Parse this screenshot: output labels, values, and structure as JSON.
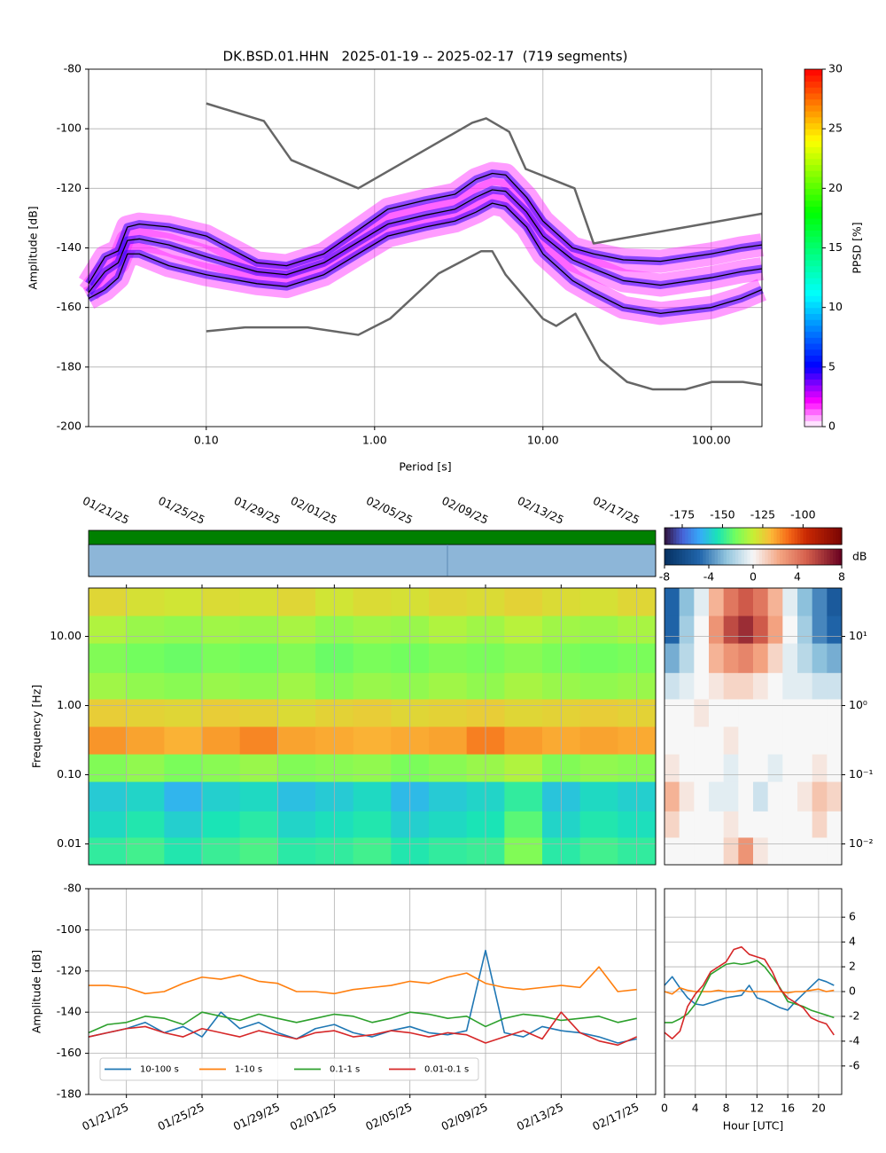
{
  "chart_data": [
    {
      "type": "line",
      "title": "DK.BSD.01.HHN   2025-01-19 -- 2025-02-17  (719 segments)",
      "xlabel": "Period [s]",
      "ylabel": "Amplitude [dB]",
      "xlog": true,
      "xlim": [
        0.02,
        200
      ],
      "ylim": [
        -200,
        -80
      ],
      "xticks": [
        {
          "value": 0.1,
          "label": "0.10"
        },
        {
          "value": 1,
          "label": "1.00"
        },
        {
          "value": 10,
          "label": "10.00"
        },
        {
          "value": 100,
          "label": "100.00"
        }
      ],
      "yticks": [
        -200,
        -180,
        -160,
        -140,
        -120,
        -100,
        -80
      ],
      "grid": true,
      "colorbar": {
        "label": "PPSD [%]",
        "clim": [
          0,
          30
        ],
        "ticks": [
          0,
          5,
          10,
          15,
          20,
          25,
          30
        ],
        "colormap": "pqlx"
      },
      "series": [
        {
          "color": "#000000",
          "x": [
            0.02,
            0.025,
            0.03,
            0.034,
            0.04,
            0.06,
            0.1,
            0.2,
            0.3,
            0.5,
            0.8,
            1.2,
            2,
            3,
            4,
            5,
            6,
            8,
            10,
            15,
            20,
            30,
            50,
            100,
            150,
            200
          ],
          "values": [
            -152,
            -143,
            -141,
            -133,
            -132,
            -133,
            -136,
            -145,
            -146,
            -142,
            -134,
            -127,
            -124,
            -122,
            -117,
            -115,
            -115.5,
            -123,
            -131,
            -140,
            -142,
            -144,
            -144.5,
            -142,
            -140,
            -139
          ]
        },
        {
          "color": "#000000",
          "x": [
            0.02,
            0.025,
            0.03,
            0.034,
            0.04,
            0.06,
            0.1,
            0.2,
            0.3,
            0.5,
            0.8,
            1.2,
            2,
            3,
            4,
            5,
            6,
            8,
            10,
            15,
            20,
            30,
            50,
            100,
            150,
            200
          ],
          "values": [
            -155,
            -148,
            -145,
            -137.5,
            -137,
            -139,
            -143,
            -148,
            -149,
            -145,
            -138,
            -132,
            -129,
            -127,
            -123,
            -120.5,
            -121,
            -128,
            -136,
            -144,
            -147,
            -151,
            -152.5,
            -150,
            -148,
            -147
          ]
        },
        {
          "color": "#000000",
          "x": [
            0.02,
            0.025,
            0.03,
            0.034,
            0.04,
            0.06,
            0.1,
            0.2,
            0.3,
            0.5,
            0.8,
            1.2,
            2,
            3,
            4,
            5,
            6,
            8,
            10,
            15,
            20,
            30,
            50,
            100,
            150,
            200
          ],
          "values": [
            -157,
            -154,
            -150,
            -142,
            -142,
            -146,
            -149,
            -152,
            -153,
            -149,
            -142,
            -136,
            -133,
            -131,
            -128,
            -125,
            -126,
            -133,
            -142,
            -151,
            -155,
            -160,
            -162,
            -160,
            -157,
            -154
          ]
        },
        {
          "color": "#666666",
          "x": [
            0.1,
            0.22,
            0.32,
            0.8,
            3.8,
            4.6,
            6.3,
            7.9,
            15.4,
            20,
            200
          ],
          "values": [
            -91.5,
            -97.4,
            -110.5,
            -120,
            -98,
            -96.5,
            -101,
            -113.5,
            -120,
            -138.5,
            -128.5
          ]
        },
        {
          "color": "#666666",
          "x": [
            0.1,
            0.17,
            0.4,
            0.8,
            1.24,
            2.4,
            4.3,
            5,
            6,
            10,
            12,
            15.6,
            21.9,
            31.6,
            45,
            70,
            101,
            154,
            200
          ],
          "values": [
            -168,
            -166.7,
            -166.7,
            -169.2,
            -163.7,
            -148.6,
            -141.1,
            -141.1,
            -149,
            -163.8,
            -166.2,
            -162.1,
            -177.5,
            -185,
            -187.5,
            -187.5,
            -185,
            -185,
            -186
          ]
        }
      ]
    },
    {
      "type": "heatmap",
      "ylabel": "Frequency [Hz]",
      "ylog": true,
      "xlim": [
        "2025-01-19",
        "2025-02-18"
      ],
      "ylim": [
        0.005,
        50
      ],
      "xticks": [
        {
          "value": "2025-01-21",
          "label": "01/21/25"
        },
        {
          "value": "2025-01-25",
          "label": "01/25/25"
        },
        {
          "value": "2025-01-29",
          "label": "01/29/25"
        },
        {
          "value": "2025-02-01",
          "label": "02/01/25"
        },
        {
          "value": "2025-02-05",
          "label": "02/05/25"
        },
        {
          "value": "2025-02-09",
          "label": "02/09/25"
        },
        {
          "value": "2025-02-13",
          "label": "02/13/25"
        },
        {
          "value": "2025-02-17",
          "label": "02/17/25"
        }
      ],
      "yticks": [
        0.01,
        {
          "value": 0.1,
          "label": "0.10"
        },
        {
          "value": 1,
          "label": "1.00"
        },
        {
          "value": 10,
          "label": "10.00"
        }
      ],
      "grid": true,
      "x_bins": [
        "2025-01-19",
        "2025-01-21",
        "2025-01-23",
        "2025-01-25",
        "2025-01-27",
        "2025-01-29",
        "2025-01-31",
        "2025-02-02",
        "2025-02-04",
        "2025-02-06",
        "2025-02-08",
        "2025-02-10",
        "2025-02-12",
        "2025-02-14",
        "2025-02-16",
        "2025-02-18"
      ],
      "y_bins": [
        0.005,
        0.0125,
        0.03,
        0.08,
        0.2,
        0.5,
        1.25,
        3,
        8,
        20,
        50
      ],
      "z": [
        [
          -150,
          -148,
          -152,
          -149,
          -147,
          -151,
          -150,
          -148,
          -152,
          -150,
          -149,
          -140,
          -151,
          -148,
          -150
        ],
        [
          -155,
          -152,
          -157,
          -153,
          -151,
          -156,
          -154,
          -152,
          -157,
          -155,
          -153,
          -145,
          -156,
          -152,
          -154
        ],
        [
          -158,
          -156,
          -162,
          -157,
          -155,
          -160,
          -158,
          -155,
          -161,
          -158,
          -156,
          -150,
          -159,
          -155,
          -157
        ],
        [
          -140,
          -138,
          -141,
          -139,
          -137,
          -140,
          -139,
          -138,
          -141,
          -139,
          -137,
          -134,
          -140,
          -138,
          -139
        ],
        [
          -115,
          -117,
          -119,
          -116,
          -113,
          -117,
          -118,
          -119,
          -118,
          -117,
          -112,
          -116,
          -118,
          -117,
          -118
        ],
        [
          -124,
          -125,
          -126,
          -124,
          -125,
          -127,
          -125,
          -124,
          -126,
          -125,
          -124,
          -126,
          -125,
          -124,
          -125
        ],
        [
          -136,
          -138,
          -139,
          -137,
          -138,
          -136,
          -139,
          -137,
          -138,
          -136,
          -138,
          -135,
          -137,
          -138,
          -137
        ],
        [
          -140,
          -142,
          -143,
          -141,
          -142,
          -140,
          -143,
          -141,
          -142,
          -140,
          -141,
          -139,
          -141,
          -142,
          -141
        ],
        [
          -134,
          -137,
          -138,
          -136,
          -137,
          -135,
          -138,
          -136,
          -137,
          -134,
          -136,
          -133,
          -136,
          -137,
          -135
        ],
        [
          -126,
          -128,
          -129,
          -127,
          -128,
          -126,
          -129,
          -127,
          -128,
          -126,
          -127,
          -125,
          -127,
          -128,
          -126
        ]
      ],
      "colorbar": {
        "clim": [
          -186,
          -76
        ],
        "ticks": [
          -175,
          -150,
          -125,
          -100
        ],
        "colormap": "turbo"
      }
    },
    {
      "type": "heatmap",
      "ylog": true,
      "xlim": [
        0,
        24
      ],
      "ylim": [
        0.005,
        50
      ],
      "yticks": [
        {
          "value": 0.01,
          "label": "10⁻²"
        },
        {
          "value": 0.1,
          "label": "10⁻¹"
        },
        {
          "value": 1,
          "label": "10⁰"
        },
        {
          "value": 10,
          "label": "10¹"
        }
      ],
      "grid": true,
      "x_bins": [
        0,
        2,
        4,
        6,
        8,
        10,
        12,
        14,
        16,
        18,
        20,
        22,
        24
      ],
      "y_bins": [
        0.005,
        0.0125,
        0.03,
        0.08,
        0.2,
        0.5,
        1.25,
        3,
        8,
        20,
        50
      ],
      "z": [
        [
          0,
          0,
          0,
          0,
          1,
          3,
          0.5,
          0,
          0,
          0,
          0,
          0
        ],
        [
          1,
          0,
          0,
          0,
          0.5,
          0,
          0,
          0,
          0,
          0,
          1,
          0
        ],
        [
          2,
          0.5,
          0,
          -0.5,
          -0.5,
          0,
          -1,
          0,
          0,
          0.5,
          1.5,
          1
        ],
        [
          0.5,
          0,
          0,
          0,
          -0.5,
          0,
          0,
          -0.5,
          0,
          0,
          0.5,
          0
        ],
        [
          0,
          0,
          0,
          0,
          0.5,
          0,
          0,
          0,
          0,
          0,
          0,
          0
        ],
        [
          0,
          0,
          0.5,
          0,
          0,
          0,
          0,
          0,
          0,
          0,
          0,
          0
        ],
        [
          -1,
          -0.5,
          0,
          0.5,
          1,
          1,
          0.5,
          0,
          -0.5,
          -0.5,
          -1,
          -1
        ],
        [
          -3,
          -1.5,
          0,
          2,
          3,
          3.5,
          2.5,
          1,
          -0.5,
          -1.5,
          -2.5,
          -3
        ],
        [
          -5,
          -2,
          0,
          3,
          5.5,
          6.5,
          5,
          2.5,
          0,
          -2,
          -4,
          -5
        ],
        [
          -5,
          -2.5,
          -0.5,
          2,
          4,
          5,
          4,
          2,
          -0.5,
          -2.5,
          -4,
          -5.5
        ]
      ],
      "colorbar": {
        "label": "dB",
        "clim": [
          -8,
          8
        ],
        "ticks": [
          -8,
          -4,
          0,
          4,
          8
        ],
        "colormap": "RdBu_r"
      }
    },
    {
      "type": "line",
      "ylabel": "Amplitude [dB]",
      "x": [
        "2025-01-19",
        "2025-01-20",
        "2025-01-21",
        "2025-01-22",
        "2025-01-23",
        "2025-01-24",
        "2025-01-25",
        "2025-01-26",
        "2025-01-27",
        "2025-01-28",
        "2025-01-29",
        "2025-01-30",
        "2025-01-31",
        "2025-02-01",
        "2025-02-02",
        "2025-02-03",
        "2025-02-04",
        "2025-02-05",
        "2025-02-06",
        "2025-02-07",
        "2025-02-08",
        "2025-02-09",
        "2025-02-10",
        "2025-02-11",
        "2025-02-12",
        "2025-02-13",
        "2025-02-14",
        "2025-02-15",
        "2025-02-16",
        "2025-02-17"
      ],
      "xlim": [
        "2025-01-19",
        "2025-02-18"
      ],
      "ylim": [
        -180,
        -80
      ],
      "xticks": [
        {
          "value": "2025-01-21",
          "label": "01/21/25"
        },
        {
          "value": "2025-01-25",
          "label": "01/25/25"
        },
        {
          "value": "2025-01-29",
          "label": "01/29/25"
        },
        {
          "value": "2025-02-01",
          "label": "02/01/25"
        },
        {
          "value": "2025-02-05",
          "label": "02/05/25"
        },
        {
          "value": "2025-02-09",
          "label": "02/09/25"
        },
        {
          "value": "2025-02-13",
          "label": "02/13/25"
        },
        {
          "value": "2025-02-17",
          "label": "02/17/25"
        }
      ],
      "yticks": [
        -180,
        -160,
        -140,
        -120,
        -100,
        -80
      ],
      "grid": true,
      "legend": "lower left",
      "series": [
        {
          "name": "10-100 s",
          "color": "#1f77b4",
          "values": [
            -152,
            -150,
            -148,
            -145,
            -150,
            -147,
            -152,
            -140,
            -148,
            -145,
            -150,
            -153,
            -148,
            -146,
            -150,
            -152,
            -149,
            -147,
            -150,
            -151,
            -149,
            -110,
            -150,
            -152,
            -147,
            -149,
            -150,
            -152,
            -155,
            -153
          ]
        },
        {
          "name": "1-10 s",
          "color": "#ff7f0e",
          "values": [
            -127,
            -127,
            -128,
            -131,
            -130,
            -126,
            -123,
            -124,
            -122,
            -125,
            -126,
            -130,
            -130,
            -131,
            -129,
            -128,
            -127,
            -125,
            -126,
            -123,
            -121,
            -126,
            -128,
            -129,
            -128,
            -127,
            -128,
            -118,
            -130,
            -129
          ]
        },
        {
          "name": "0.1-1 s",
          "color": "#2ca02c",
          "values": [
            -150,
            -146,
            -145,
            -142,
            -143,
            -146,
            -140,
            -142,
            -144,
            -141,
            -143,
            -145,
            -143,
            -141,
            -142,
            -145,
            -143,
            -140,
            -141,
            -143,
            -142,
            -147,
            -143,
            -141,
            -142,
            -144,
            -143,
            -142,
            -145,
            -143
          ]
        },
        {
          "name": "0.01-0.1 s",
          "color": "#d62728",
          "values": [
            -152,
            -150,
            -148,
            -147,
            -150,
            -152,
            -148,
            -150,
            -152,
            -149,
            -151,
            -153,
            -150,
            -149,
            -152,
            -151,
            -149,
            -150,
            -152,
            -150,
            -151,
            -155,
            -152,
            -149,
            -153,
            -140,
            -150,
            -154,
            -156,
            -152
          ]
        }
      ]
    },
    {
      "type": "line",
      "xlabel": "Hour [UTC]",
      "x": [
        0,
        1,
        2,
        3,
        4,
        5,
        6,
        7,
        8,
        9,
        10,
        11,
        12,
        13,
        14,
        15,
        16,
        17,
        18,
        19,
        20,
        21,
        22
      ],
      "xlim": [
        0,
        23
      ],
      "ylim": [
        -8.3,
        8.3
      ],
      "xticks": [
        0,
        4,
        8,
        12,
        16,
        20
      ],
      "yticks": [
        -6,
        -4,
        -2,
        0,
        2,
        4,
        6
      ],
      "grid": true,
      "series": [
        {
          "color": "#1f77b4",
          "values": [
            0.5,
            1.2,
            0.3,
            -0.5,
            -1,
            -1.1,
            -0.9,
            -0.7,
            -0.5,
            -0.4,
            -0.3,
            0.5,
            -0.5,
            -0.7,
            -1,
            -1.3,
            -1.5,
            -0.8,
            -0.2,
            0.4,
            1.0,
            0.8,
            0.5
          ]
        },
        {
          "color": "#ff7f0e",
          "values": [
            0,
            -0.2,
            0.3,
            0.1,
            0,
            0,
            0,
            0.1,
            0,
            0,
            0.1,
            0,
            0,
            0,
            0,
            0,
            -0.1,
            0,
            0,
            0.1,
            0.2,
            0,
            0.1
          ]
        },
        {
          "color": "#2ca02c",
          "values": [
            -2.5,
            -2.5,
            -2.2,
            -1.8,
            -1,
            0.2,
            1.4,
            1.8,
            2.2,
            2.3,
            2.2,
            2.3,
            2.5,
            2,
            1.2,
            0.3,
            -0.8,
            -1,
            -1.2,
            -1.5,
            -1.7,
            -1.9,
            -2.1
          ]
        },
        {
          "color": "#d62728",
          "values": [
            -3.3,
            -3.8,
            -3.2,
            -1.2,
            -0.2,
            0.5,
            1.6,
            2,
            2.4,
            3.4,
            3.6,
            3,
            2.8,
            2.6,
            1.6,
            0.2,
            -0.5,
            -0.9,
            -1.3,
            -2.1,
            -2.4,
            -2.6,
            -3.5
          ]
        }
      ]
    }
  ]
}
